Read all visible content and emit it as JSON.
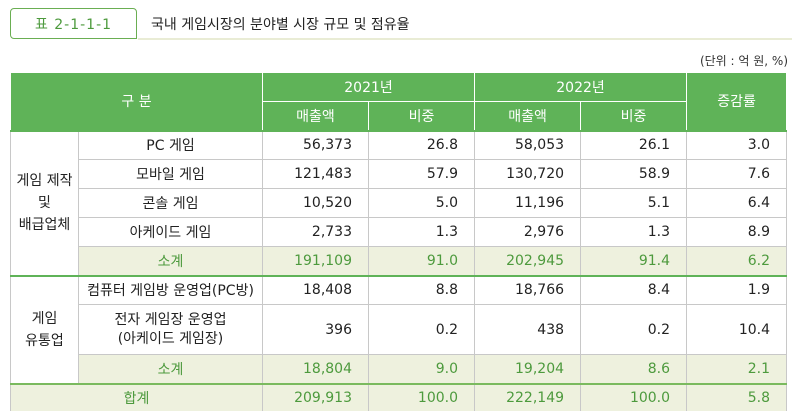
{
  "table_label": "표 2-1-1-1",
  "title": "국내 게임시장의 분야별 시장 규모 및 점유율",
  "unit": "(단위 : 억 원, %)",
  "headers": {
    "category": "구 분",
    "year1": "2021년",
    "year2": "2022년",
    "growth": "증감률",
    "sales": "매출액",
    "share": "비중"
  },
  "groups": {
    "dev": "게임 제작\n및\n배급업체",
    "dist": "게임\n유통업"
  },
  "rows": [
    {
      "label": "PC 게임",
      "s21": "56,373",
      "p21": "26.8",
      "s22": "58,053",
      "p22": "26.1",
      "g": "3.0"
    },
    {
      "label": "모바일 게임",
      "s21": "121,483",
      "p21": "57.9",
      "s22": "130,720",
      "p22": "58.9",
      "g": "7.6"
    },
    {
      "label": "콘솔 게임",
      "s21": "10,520",
      "p21": "5.0",
      "s22": "11,196",
      "p22": "5.1",
      "g": "6.4"
    },
    {
      "label": "아케이드 게임",
      "s21": "2,733",
      "p21": "1.3",
      "s22": "2,976",
      "p22": "1.3",
      "g": "8.9"
    },
    {
      "label": "소계",
      "s21": "191,109",
      "p21": "91.0",
      "s22": "202,945",
      "p22": "91.4",
      "g": "6.2"
    },
    {
      "label": "컴퓨터 게임방 운영업(PC방)",
      "s21": "18,408",
      "p21": "8.8",
      "s22": "18,766",
      "p22": "8.4",
      "g": "1.9"
    },
    {
      "label": "전자 게임장 운영업\n(아케이드 게임장)",
      "s21": "396",
      "p21": "0.2",
      "s22": "438",
      "p22": "0.2",
      "g": "10.4"
    },
    {
      "label": "소계",
      "s21": "18,804",
      "p21": "9.0",
      "s22": "19,204",
      "p22": "8.6",
      "g": "2.1"
    },
    {
      "label": "합계",
      "s21": "209,913",
      "p21": "100.0",
      "s22": "222,149",
      "p22": "100.0",
      "g": "5.8"
    }
  ]
}
